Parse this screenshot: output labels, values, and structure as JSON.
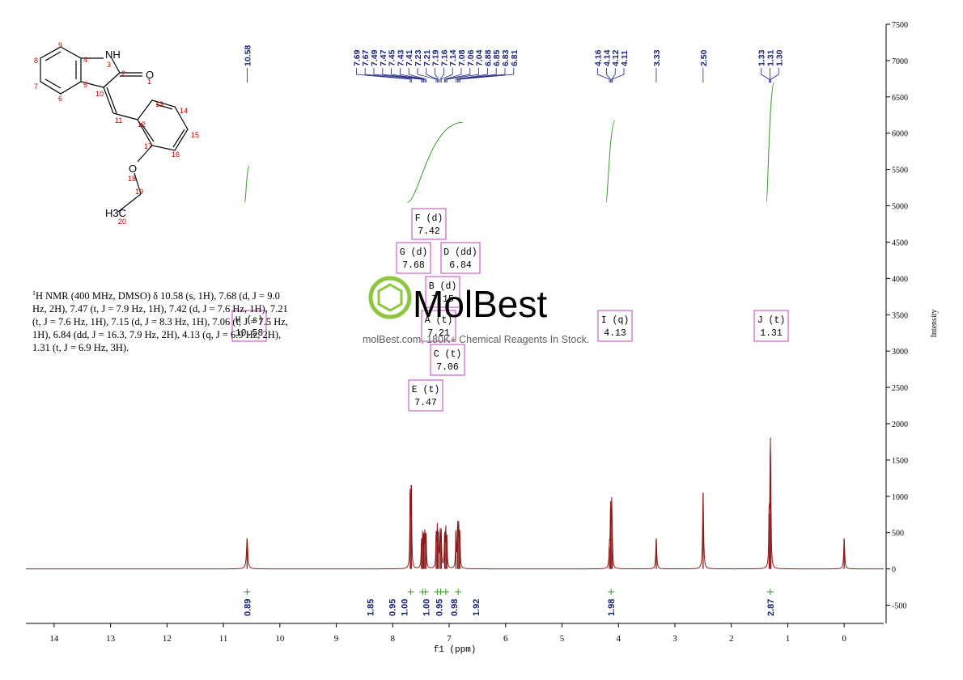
{
  "chart_data": {
    "type": "line",
    "title": "",
    "xlabel": "f1 (ppm)",
    "ylabel": "Intensity",
    "xlim": [
      14.5,
      -0.7
    ],
    "ylim": [
      -750,
      7500
    ],
    "x_ticks": [
      14,
      13,
      12,
      11,
      10,
      9,
      8,
      7,
      6,
      5,
      4,
      3,
      2,
      1,
      0
    ],
    "y_ticks": [
      7500,
      7000,
      6500,
      6000,
      5500,
      5000,
      4500,
      4000,
      3500,
      3000,
      2500,
      2000,
      1500,
      1000,
      500,
      0,
      -500
    ],
    "y_axis_side": "right",
    "spectrum_color": "#8b1a1a",
    "peaks": [
      {
        "ppm": 10.58,
        "height": 420,
        "width": 0.014
      },
      {
        "ppm": 7.69,
        "height": 1050,
        "width": 0.007
      },
      {
        "ppm": 7.67,
        "height": 1150,
        "width": 0.007
      },
      {
        "ppm": 7.49,
        "height": 350,
        "width": 0.007
      },
      {
        "ppm": 7.47,
        "height": 420,
        "width": 0.007
      },
      {
        "ppm": 7.45,
        "height": 380,
        "width": 0.007
      },
      {
        "ppm": 7.43,
        "height": 460,
        "width": 0.007
      },
      {
        "ppm": 7.41,
        "height": 480,
        "width": 0.007
      },
      {
        "ppm": 7.23,
        "height": 440,
        "width": 0.007
      },
      {
        "ppm": 7.21,
        "height": 520,
        "width": 0.007
      },
      {
        "ppm": 7.19,
        "height": 420,
        "width": 0.007
      },
      {
        "ppm": 7.16,
        "height": 460,
        "width": 0.007
      },
      {
        "ppm": 7.14,
        "height": 480,
        "width": 0.007
      },
      {
        "ppm": 7.08,
        "height": 470,
        "width": 0.007
      },
      {
        "ppm": 7.06,
        "height": 520,
        "width": 0.007
      },
      {
        "ppm": 7.04,
        "height": 400,
        "width": 0.007
      },
      {
        "ppm": 6.88,
        "height": 500,
        "width": 0.007
      },
      {
        "ppm": 6.85,
        "height": 560,
        "width": 0.007
      },
      {
        "ppm": 6.83,
        "height": 540,
        "width": 0.007
      },
      {
        "ppm": 6.81,
        "height": 460,
        "width": 0.007
      },
      {
        "ppm": 4.16,
        "height": 300,
        "width": 0.007
      },
      {
        "ppm": 4.14,
        "height": 820,
        "width": 0.007
      },
      {
        "ppm": 4.12,
        "height": 800,
        "width": 0.007
      },
      {
        "ppm": 4.11,
        "height": 280,
        "width": 0.007
      },
      {
        "ppm": 3.33,
        "height": 420,
        "width": 0.01
      },
      {
        "ppm": 2.5,
        "height": 1050,
        "width": 0.01
      },
      {
        "ppm": 1.33,
        "height": 760,
        "width": 0.007
      },
      {
        "ppm": 1.31,
        "height": 1560,
        "width": 0.007
      },
      {
        "ppm": 1.3,
        "height": 740,
        "width": 0.007
      },
      {
        "ppm": 0.0,
        "height": 420,
        "width": 0.01
      }
    ],
    "peak_labels": [
      "10.58",
      "7.69",
      "7.67",
      "7.49",
      "7.47",
      "7.45",
      "7.43",
      "7.41",
      "7.23",
      "7.21",
      "7.19",
      "7.16",
      "7.14",
      "7.08",
      "7.06",
      "7.04",
      "6.88",
      "6.85",
      "6.83",
      "6.81",
      "4.16",
      "4.14",
      "4.12",
      "4.11",
      "3.33",
      "2.50",
      "1.33",
      "1.31",
      "1.30"
    ],
    "integral_curves": [
      {
        "from": 10.62,
        "to": 10.54,
        "y_start": 5050,
        "y_end": 5550
      },
      {
        "from": 7.74,
        "to": 6.76,
        "y_start": 5050,
        "y_end": 6150
      },
      {
        "from": 4.22,
        "to": 4.06,
        "y_start": 5050,
        "y_end": 6170
      },
      {
        "from": 1.38,
        "to": 1.24,
        "y_start": 5050,
        "y_end": 6700
      }
    ],
    "integrations": [
      {
        "ppm": 10.58,
        "value": "0.89"
      },
      {
        "ppm": 7.68,
        "value": "1.85"
      },
      {
        "ppm": 7.47,
        "value": "0.95"
      },
      {
        "ppm": 7.42,
        "value": "1.00"
      },
      {
        "ppm": 7.21,
        "value": "1.00"
      },
      {
        "ppm": 7.15,
        "value": "0.95"
      },
      {
        "ppm": 7.06,
        "value": "0.98"
      },
      {
        "ppm": 6.84,
        "value": "1.92"
      },
      {
        "ppm": 4.13,
        "value": "1.98"
      },
      {
        "ppm": 1.31,
        "value": "2.87"
      }
    ],
    "multiplets": [
      {
        "name": "F (d)",
        "shift": "7.42"
      },
      {
        "name": "G (d)",
        "shift": "7.68"
      },
      {
        "name": "D (dd)",
        "shift": "6.84"
      },
      {
        "name": "B (d)",
        "shift": "7.15"
      },
      {
        "name": "A (t)",
        "shift": "7.21"
      },
      {
        "name": "C (t)",
        "shift": "7.06"
      },
      {
        "name": "E (t)",
        "shift": "7.47"
      },
      {
        "name": "H (s)",
        "shift": "10.58"
      },
      {
        "name": "I (q)",
        "shift": "4.13"
      },
      {
        "name": "J (t)",
        "shift": "1.31"
      }
    ]
  },
  "molecule": {
    "atoms": {
      "NH": "NH",
      "O_carbonyl": "O",
      "O_ether": "O",
      "CH3": "H3C",
      "sub3": "3"
    },
    "atom_numbers": [
      "1",
      "2",
      "3",
      "4",
      "5",
      "6",
      "7",
      "8",
      "9",
      "10",
      "11",
      "12",
      "13",
      "14",
      "15",
      "16",
      "17",
      "18",
      "19",
      "20"
    ]
  },
  "description": {
    "nucleus_sup": "1",
    "text": "H NMR (400 MHz, DMSO) δ 10.58 (s, 1H), 7.68 (d, J = 9.0 Hz, 2H), 7.47 (t, J = 7.9 Hz, 1H), 7.42 (d, J = 7.6 Hz, 1H), 7.21 (t, J = 7.6 Hz, 1H), 7.15 (d, J = 8.3 Hz, 1H), 7.06 (t, J = 7.5 Hz, 1H), 6.84 (dd, J = 16.3, 7.9 Hz, 2H), 4.13 (q, J = 6.9 Hz, 2H), 1.31 (t, J = 6.9 Hz, 3H)."
  },
  "watermark": {
    "brand": "MolBest",
    "tagline": "molBest.com, 180K+ Chemical Reagents In Stock.",
    "color": "#8dc63f"
  }
}
